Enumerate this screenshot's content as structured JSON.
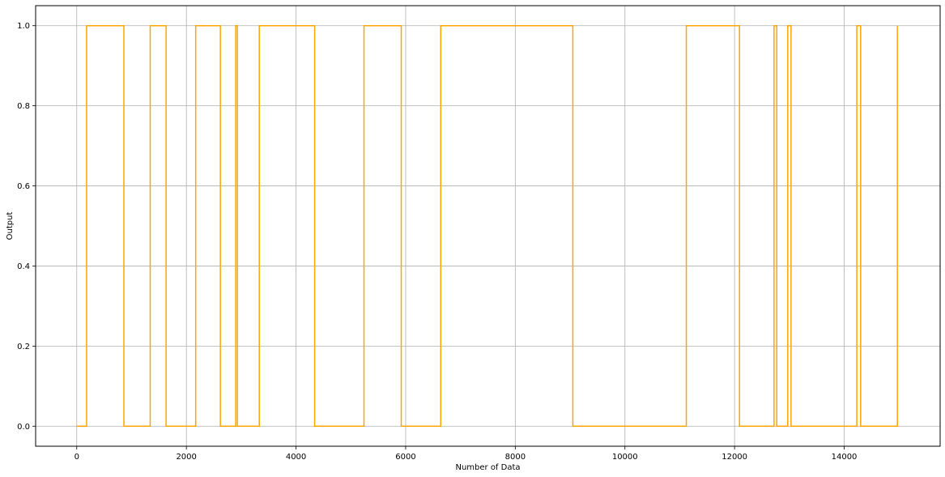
{
  "chart_data": {
    "type": "line",
    "title": "",
    "xlabel": "Number of Data",
    "ylabel": "Output",
    "xlim": [
      -750,
      15750
    ],
    "ylim": [
      -0.05,
      1.05
    ],
    "xticks": [
      0,
      2000,
      4000,
      6000,
      8000,
      10000,
      12000,
      14000
    ],
    "yticks": [
      0.0,
      0.2,
      0.4,
      0.6,
      0.8,
      1.0
    ],
    "xtick_labels": [
      "0",
      "2000",
      "4000",
      "6000",
      "8000",
      "10000",
      "12000",
      "14000"
    ],
    "ytick_labels": [
      "0.0",
      "0.2",
      "0.4",
      "0.6",
      "0.8",
      "1.0"
    ],
    "grid": true,
    "line_color": "#ffa500",
    "series": [
      {
        "step": true,
        "x": [
          0,
          180,
          860,
          1340,
          1630,
          2170,
          2620,
          2900,
          2930,
          3330,
          4340,
          5240,
          5920,
          6640,
          9050,
          11120,
          12090,
          12720,
          12770,
          12970,
          13030,
          14230,
          14300,
          14970
        ],
        "y": [
          0,
          1,
          0,
          1,
          0,
          1,
          0,
          1,
          0,
          1,
          0,
          1,
          0,
          1,
          0,
          1,
          0,
          1,
          0,
          1,
          0,
          1,
          0,
          1
        ]
      }
    ]
  }
}
